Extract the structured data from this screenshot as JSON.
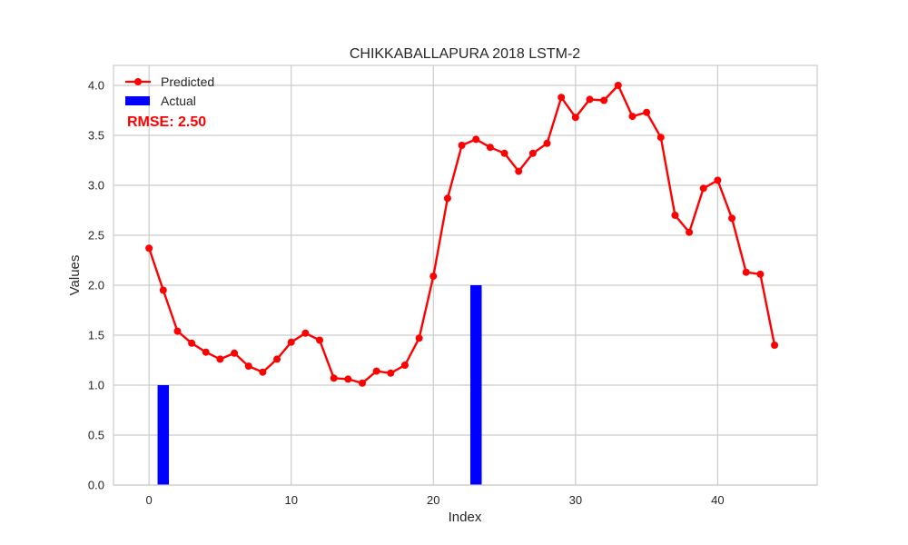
{
  "chart_data": {
    "type": "line",
    "title": "CHIKKABALLAPURA 2018 LSTM-2",
    "xlabel": "Index",
    "ylabel": "Values",
    "xlim": [
      -2.5,
      47
    ],
    "ylim": [
      0,
      4.2
    ],
    "x_ticks": [
      0,
      10,
      20,
      30,
      40
    ],
    "y_ticks": [
      0.0,
      0.5,
      1.0,
      1.5,
      2.0,
      2.5,
      3.0,
      3.5,
      4.0
    ],
    "grid": true,
    "legend_position": "top-left",
    "series": [
      {
        "name": "Predicted",
        "kind": "line",
        "color": "#ff0000",
        "x": [
          0,
          1,
          2,
          3,
          4,
          5,
          6,
          7,
          8,
          9,
          10,
          11,
          12,
          13,
          14,
          15,
          16,
          17,
          18,
          19,
          20,
          21,
          22,
          23,
          24,
          25,
          26,
          27,
          28,
          29,
          30,
          31,
          32,
          33,
          34,
          35,
          36,
          37,
          38,
          39,
          40,
          41,
          42,
          43,
          44
        ],
        "values": [
          2.37,
          1.95,
          1.54,
          1.42,
          1.33,
          1.26,
          1.32,
          1.19,
          1.13,
          1.26,
          1.43,
          1.52,
          1.45,
          1.07,
          1.06,
          1.02,
          1.14,
          1.12,
          1.2,
          1.47,
          2.09,
          2.87,
          3.4,
          3.46,
          3.38,
          3.32,
          3.14,
          3.32,
          3.42,
          3.88,
          3.68,
          3.86,
          3.85,
          4.0,
          3.69,
          3.73,
          3.48,
          2.7,
          2.53,
          2.97,
          3.05,
          2.67,
          2.13,
          2.11,
          1.4
        ]
      },
      {
        "name": "Actual",
        "kind": "bar",
        "color": "#0000ff",
        "x": [
          1,
          23
        ],
        "values": [
          1.0,
          2.0
        ]
      }
    ],
    "annotation": {
      "text": "RMSE: 2.50",
      "color": "#ff0000"
    }
  }
}
